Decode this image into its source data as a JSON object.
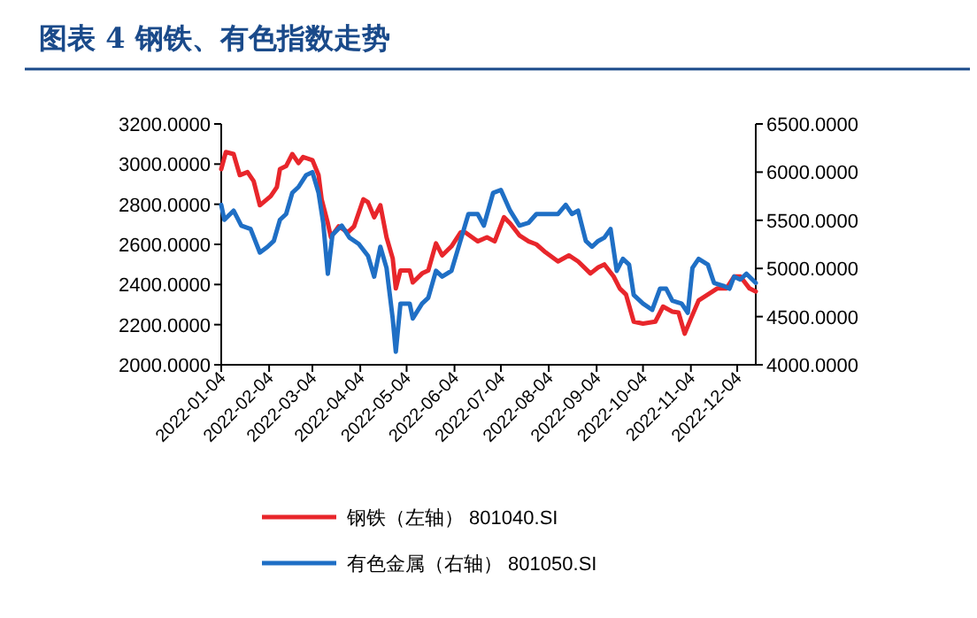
{
  "chart_data": {
    "type": "line",
    "title": "图表 4 钢铁、有色指数走势",
    "xlim": [
      "2022-01-04",
      "2022-12-16"
    ],
    "xticks": [
      "2022-01-04",
      "2022-02-04",
      "2022-03-04",
      "2022-04-04",
      "2022-05-04",
      "2022-06-04",
      "2022-07-04",
      "2022-08-04",
      "2022-09-04",
      "2022-10-04",
      "2022-11-04",
      "2022-12-04"
    ],
    "ylim": [
      2000,
      3200
    ],
    "yticks": [
      {
        "value": 2000,
        "label": "2000.0000"
      },
      {
        "value": 2200,
        "label": "2200.0000"
      },
      {
        "value": 2400,
        "label": "2400.0000"
      },
      {
        "value": 2600,
        "label": "2600.0000"
      },
      {
        "value": 2800,
        "label": "2800.0000"
      },
      {
        "value": 3000,
        "label": "3000.0000"
      },
      {
        "value": 3200,
        "label": "3200.0000"
      }
    ],
    "y2lim": [
      4000,
      6500
    ],
    "y2ticks": [
      {
        "value": 4000,
        "label": "4000.0000"
      },
      {
        "value": 4500,
        "label": "4500.0000"
      },
      {
        "value": 5000,
        "label": "5000.0000"
      },
      {
        "value": 5500,
        "label": "5500.0000"
      },
      {
        "value": 6000,
        "label": "6000.0000"
      },
      {
        "value": 6500,
        "label": "6500.0000"
      }
    ],
    "legend": "bottom",
    "series": [
      {
        "name": "钢铁（左轴） 801040.SI",
        "color": "#e8262b",
        "axis": "y",
        "x": [
          "2022-01-04",
          "2022-01-07",
          "2022-01-12",
          "2022-01-16",
          "2022-01-21",
          "2022-01-25",
          "2022-01-29",
          "2022-02-05",
          "2022-02-09",
          "2022-02-11",
          "2022-02-15",
          "2022-02-19",
          "2022-02-23",
          "2022-02-26",
          "2022-03-04",
          "2022-03-08",
          "2022-03-10",
          "2022-03-14",
          "2022-03-16",
          "2022-03-21",
          "2022-03-27",
          "2022-03-31",
          "2022-04-06",
          "2022-04-09",
          "2022-04-13",
          "2022-04-17",
          "2022-04-21",
          "2022-04-25",
          "2022-04-27",
          "2022-04-30",
          "2022-05-06",
          "2022-05-08",
          "2022-05-14",
          "2022-05-18",
          "2022-05-23",
          "2022-05-27",
          "2022-06-02",
          "2022-06-08",
          "2022-06-11",
          "2022-06-19",
          "2022-06-25",
          "2022-06-30",
          "2022-07-06",
          "2022-07-10",
          "2022-07-16",
          "2022-07-22",
          "2022-07-27",
          "2022-08-02",
          "2022-08-10",
          "2022-08-17",
          "2022-08-23",
          "2022-08-31",
          "2022-09-05",
          "2022-09-09",
          "2022-09-15",
          "2022-09-19",
          "2022-09-23",
          "2022-09-28",
          "2022-10-04",
          "2022-10-12",
          "2022-10-17",
          "2022-10-23",
          "2022-10-27",
          "2022-10-31",
          "2022-11-04",
          "2022-11-09",
          "2022-11-15",
          "2022-11-21",
          "2022-11-27",
          "2022-12-02",
          "2022-12-06",
          "2022-12-12",
          "2022-12-16"
        ],
        "values": [
          2975,
          3060,
          3050,
          2945,
          2960,
          2915,
          2795,
          2840,
          2885,
          2975,
          2990,
          3050,
          3005,
          3035,
          3020,
          2945,
          2825,
          2705,
          2635,
          2690,
          2660,
          2690,
          2825,
          2810,
          2735,
          2795,
          2635,
          2530,
          2380,
          2470,
          2470,
          2410,
          2455,
          2470,
          2605,
          2545,
          2590,
          2660,
          2660,
          2615,
          2635,
          2615,
          2735,
          2705,
          2645,
          2615,
          2600,
          2560,
          2515,
          2545,
          2515,
          2455,
          2485,
          2500,
          2440,
          2380,
          2350,
          2215,
          2205,
          2215,
          2290,
          2265,
          2260,
          2155,
          2230,
          2320,
          2350,
          2380,
          2380,
          2440,
          2440,
          2380,
          2365
        ]
      },
      {
        "name": "有色金属（右轴） 801050.SI",
        "color": "#1f6fc5",
        "axis": "y2",
        "x": [
          "2022-01-04",
          "2022-01-06",
          "2022-01-12",
          "2022-01-17",
          "2022-01-23",
          "2022-01-29",
          "2022-02-03",
          "2022-02-07",
          "2022-02-11",
          "2022-02-15",
          "2022-02-19",
          "2022-02-23",
          "2022-02-28",
          "2022-03-04",
          "2022-03-08",
          "2022-03-11",
          "2022-03-14",
          "2022-03-17",
          "2022-03-23",
          "2022-03-28",
          "2022-04-03",
          "2022-04-09",
          "2022-04-13",
          "2022-04-17",
          "2022-04-21",
          "2022-04-25",
          "2022-04-27",
          "2022-04-30",
          "2022-05-06",
          "2022-05-08",
          "2022-05-14",
          "2022-05-18",
          "2022-05-23",
          "2022-05-27",
          "2022-06-02",
          "2022-06-09",
          "2022-06-13",
          "2022-06-19",
          "2022-06-23",
          "2022-06-29",
          "2022-07-04",
          "2022-07-10",
          "2022-07-16",
          "2022-07-22",
          "2022-07-27",
          "2022-08-02",
          "2022-08-10",
          "2022-08-15",
          "2022-08-19",
          "2022-08-23",
          "2022-08-28",
          "2022-09-01",
          "2022-09-05",
          "2022-09-09",
          "2022-09-13",
          "2022-09-17",
          "2022-09-21",
          "2022-09-25",
          "2022-09-28",
          "2022-10-04",
          "2022-10-10",
          "2022-10-15",
          "2022-10-19",
          "2022-10-23",
          "2022-10-29",
          "2022-11-02",
          "2022-11-05",
          "2022-11-09",
          "2022-11-15",
          "2022-11-19",
          "2022-11-25",
          "2022-11-29",
          "2022-12-02",
          "2022-12-06",
          "2022-12-10",
          "2022-12-16"
        ],
        "values": [
          5660,
          5505,
          5600,
          5445,
          5410,
          5165,
          5225,
          5285,
          5505,
          5565,
          5785,
          5845,
          5970,
          6000,
          5785,
          5475,
          4945,
          5350,
          5445,
          5320,
          5255,
          5130,
          4915,
          5225,
          5005,
          4480,
          4135,
          4635,
          4635,
          4480,
          4635,
          4695,
          4975,
          4915,
          4975,
          5350,
          5565,
          5565,
          5445,
          5785,
          5815,
          5600,
          5445,
          5475,
          5565,
          5565,
          5565,
          5660,
          5565,
          5600,
          5285,
          5225,
          5285,
          5320,
          5410,
          4975,
          5100,
          5040,
          4725,
          4635,
          4570,
          4790,
          4790,
          4665,
          4635,
          4540,
          5005,
          5100,
          5040,
          4850,
          4820,
          4790,
          4915,
          4885,
          4945,
          4850
        ]
      }
    ]
  }
}
